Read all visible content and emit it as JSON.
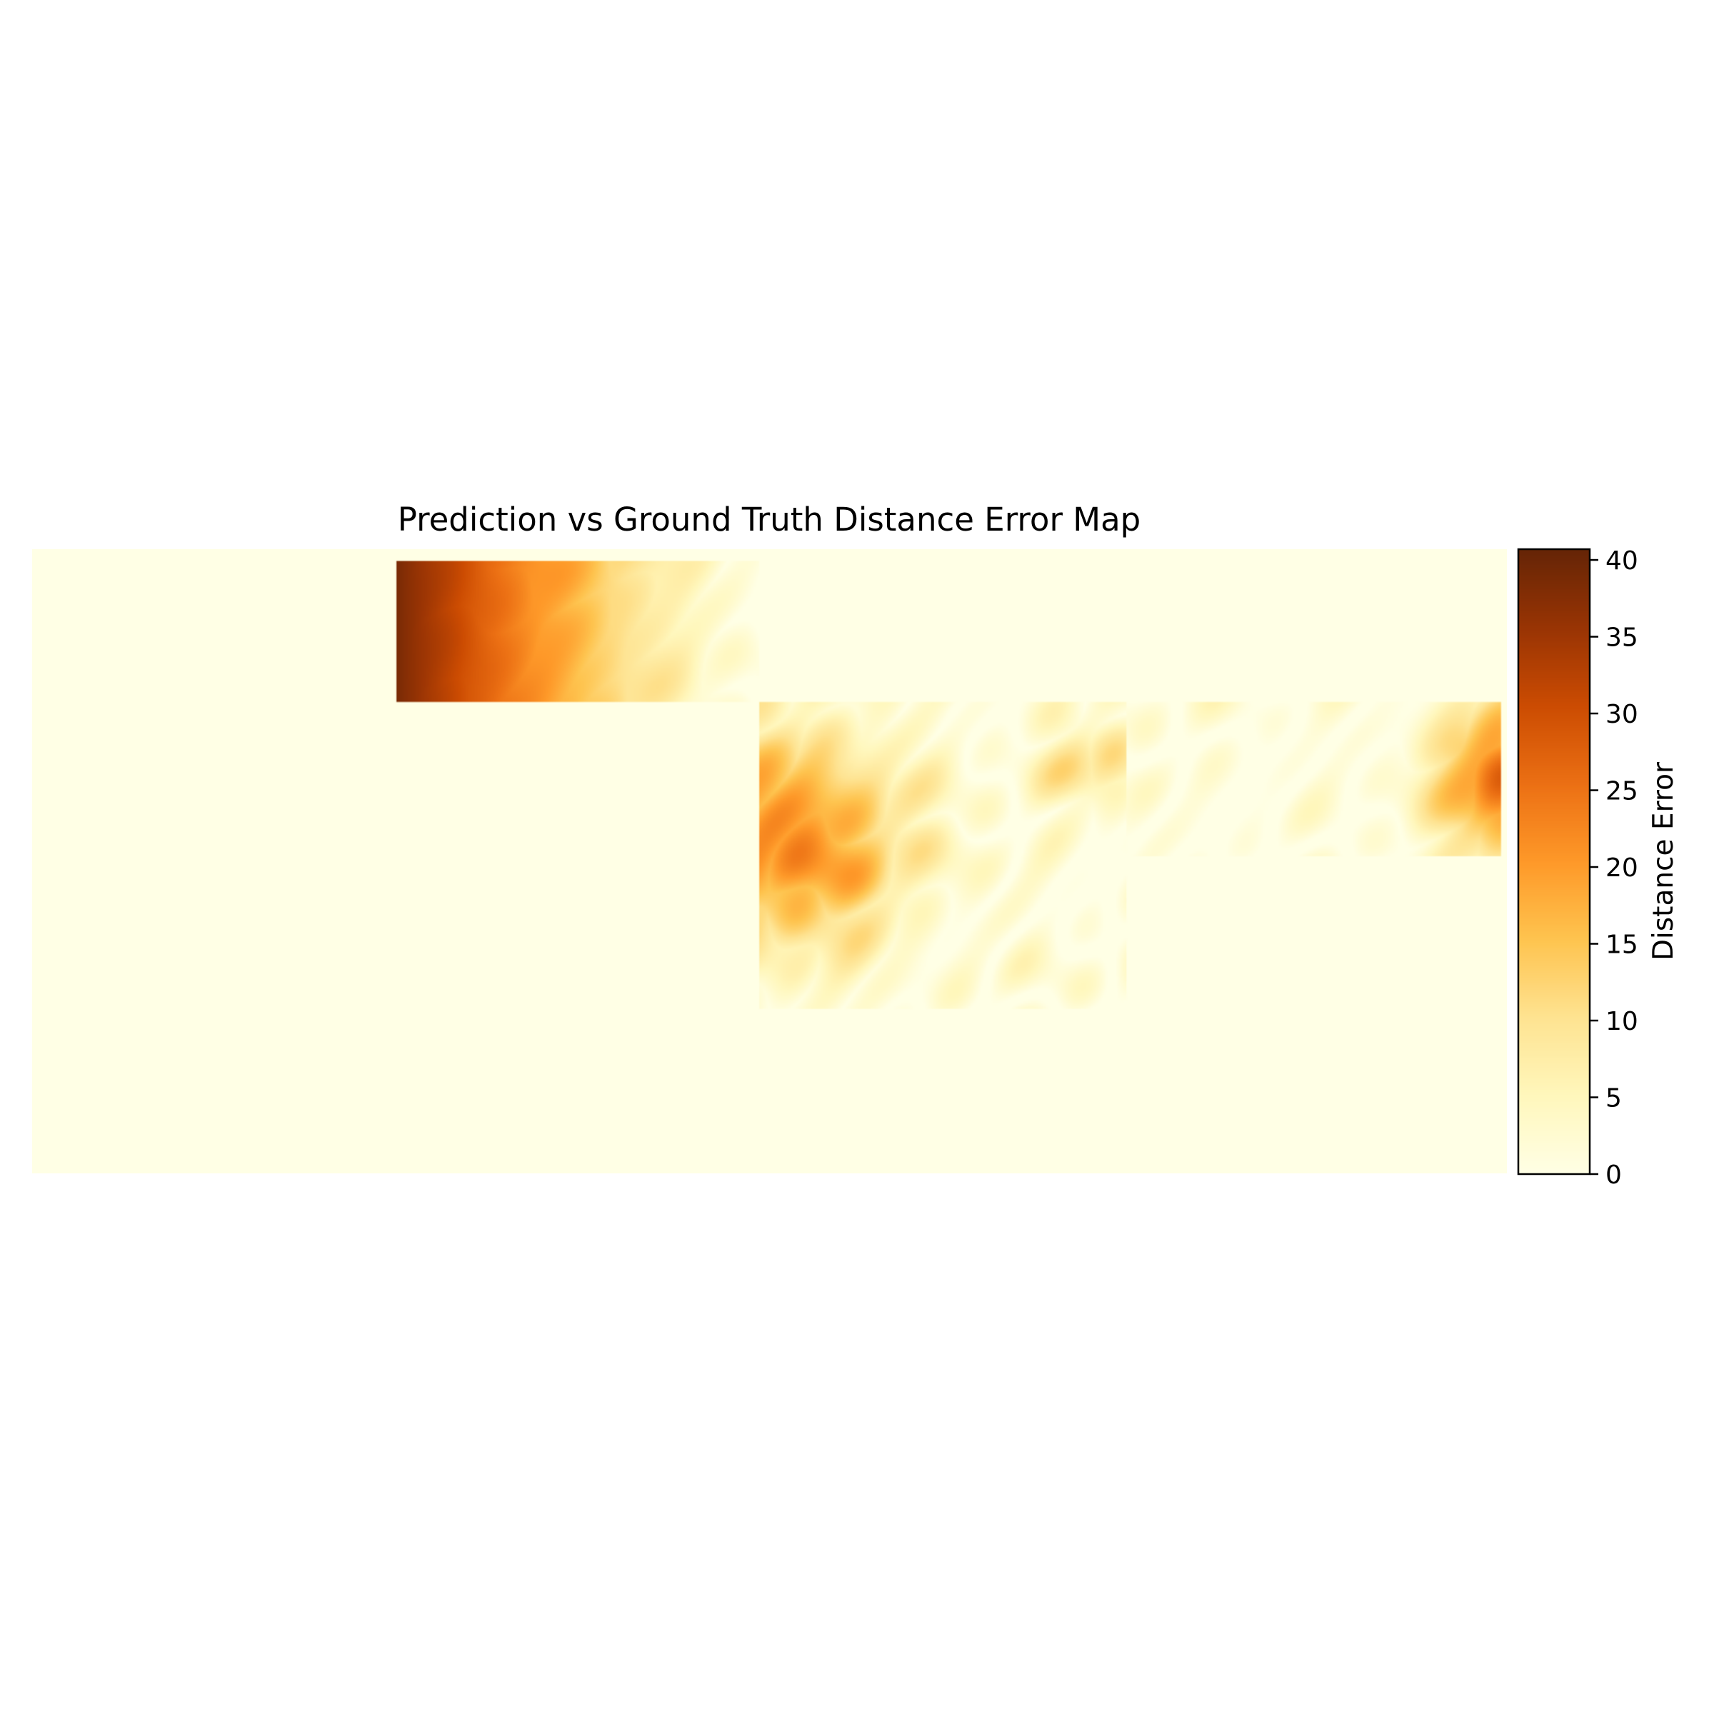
{
  "chart_data": {
    "type": "heatmap",
    "title": "Prediction vs Ground Truth Distance Error Map",
    "colorbar": {
      "label": "Distance Error",
      "range": [
        0,
        40.7
      ],
      "ticks": [
        0,
        5,
        10,
        15,
        20,
        25,
        30,
        35,
        40
      ],
      "tick_labels": [
        "0",
        "5",
        "10",
        "15",
        "20",
        "25",
        "30",
        "35",
        "40"
      ],
      "colormap": "YlOrBr",
      "colors": [
        "#ffffe5",
        "#fff7bc",
        "#fee391",
        "#fec44f",
        "#fe9929",
        "#ec7014",
        "#cc4c02",
        "#993404",
        "#662506"
      ]
    },
    "grid": false,
    "axes_visible": false,
    "grid_size": {
      "cols": 1000,
      "rows": 425
    },
    "regions": [
      {
        "id": "tile-a",
        "cols": [
          247,
          493
        ],
        "rows": [
          8,
          104
        ],
        "peak_error": 40.7,
        "pattern": "decreasing left to right"
      },
      {
        "id": "tile-b",
        "cols": [
          493,
          742
        ],
        "rows": [
          104,
          313
        ],
        "peak_error": 21,
        "pattern": "noisy, peak at left middle"
      },
      {
        "id": "tile-c",
        "cols": [
          742,
          996
        ],
        "rows": [
          104,
          209
        ],
        "peak_error": 24,
        "pattern": "noisy, peak at right edge"
      }
    ],
    "background_error": 0
  }
}
